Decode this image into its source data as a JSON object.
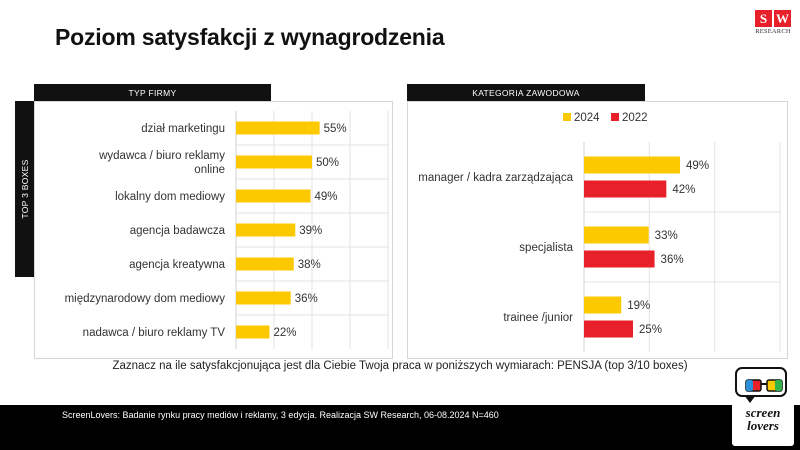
{
  "title": "Poziom satysfakcji z wynagrodzenia",
  "logo": {
    "letters": [
      "S",
      "W"
    ],
    "subtitle": "RESEARCH"
  },
  "vertical_label": "TOP 3 BOXES",
  "question": "Zaznacz na ile satysfakcjonująca jest dla Ciebie Twoja praca w poniższych wymiarach: PENSJA (top 3/10 boxes)",
  "footer": "ScreenLovers: Badanie rynku pracy mediów i reklamy, 3 edycja. Realizacja SW Research, 06-08.2024 N=460",
  "brand_logo": {
    "line1": "screen",
    "line2": "lovers"
  },
  "colors": {
    "y2024": "#fcc800",
    "y2022": "#e8202a",
    "header": "#111111"
  },
  "chart_data": [
    {
      "type": "bar",
      "orientation": "horizontal",
      "title": "TYP FIRMY",
      "categories": [
        "dział marketingu",
        "wydawca / biuro reklamy online",
        "lokalny dom mediowy",
        "agencja badawcza",
        "agencja kreatywna",
        "międzynarodowy dom mediowy",
        "nadawca / biuro reklamy TV"
      ],
      "category_lines": [
        [
          "dział marketingu"
        ],
        [
          "wydawca / biuro reklamy",
          "online"
        ],
        [
          "lokalny dom mediowy"
        ],
        [
          "agencja badawcza"
        ],
        [
          "agencja kreatywna"
        ],
        [
          "międzynarodowy dom mediowy"
        ],
        [
          "nadawca / biuro reklamy TV"
        ]
      ],
      "values": [
        55,
        50,
        49,
        39,
        38,
        36,
        22
      ],
      "labels": [
        "55%",
        "50%",
        "49%",
        "39%",
        "38%",
        "36%",
        "22%"
      ],
      "xlim": [
        0,
        100
      ]
    },
    {
      "type": "bar",
      "orientation": "horizontal",
      "title": "KATEGORIA ZAWODOWA",
      "categories": [
        "manager / kadra zarządzająca",
        "specjalista",
        "trainee /junior"
      ],
      "series": [
        {
          "name": "2024",
          "values": [
            49,
            33,
            19
          ],
          "labels": [
            "49%",
            "33%",
            "19%"
          ]
        },
        {
          "name": "2022",
          "values": [
            42,
            36,
            25
          ],
          "labels": [
            "42%",
            "36%",
            "25%"
          ]
        }
      ],
      "legend": "top",
      "xlim": [
        0,
        100
      ]
    }
  ]
}
